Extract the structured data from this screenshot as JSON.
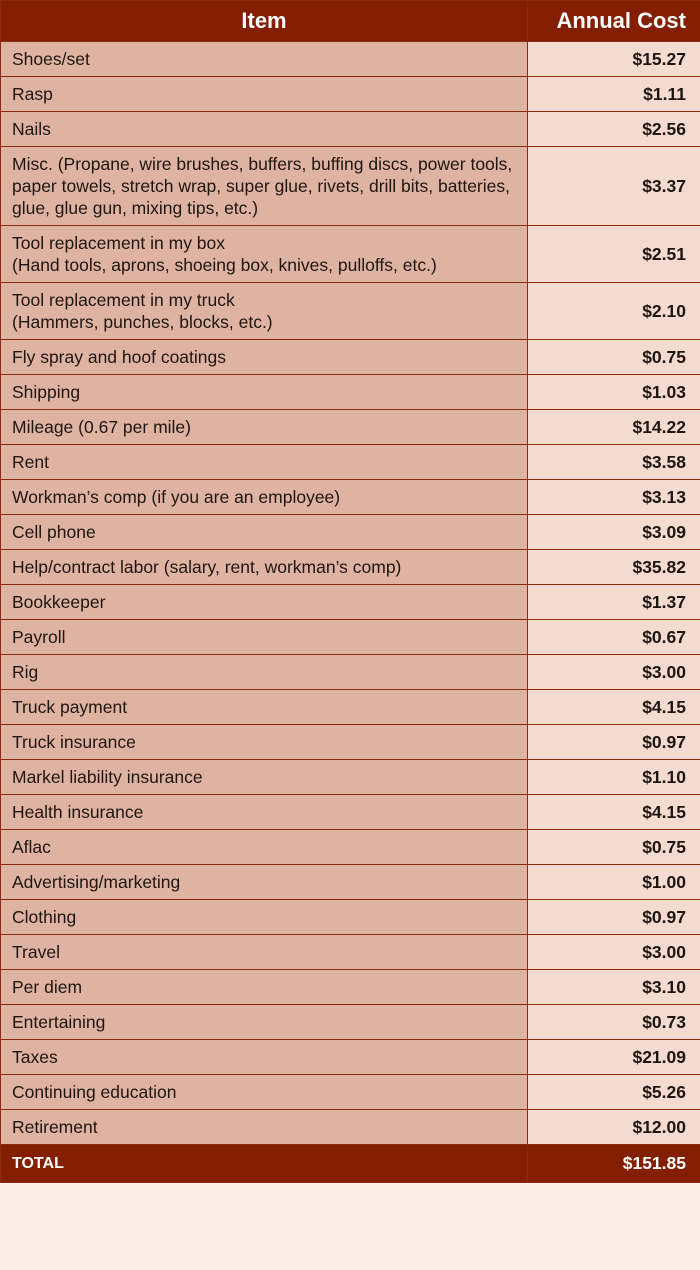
{
  "header": {
    "item": "Item",
    "annual_cost": "Annual Cost"
  },
  "rows": [
    {
      "item": "Shoes/set",
      "note": "",
      "cost": "$15.27",
      "nl": false
    },
    {
      "item": "Rasp",
      "note": "",
      "cost": "$1.11",
      "nl": false
    },
    {
      "item": "Nails",
      "note": "",
      "cost": "$2.56",
      "nl": false
    },
    {
      "item": "Misc.",
      "note": "(Propane, wire brushes, buffers, buffing discs, power tools, paper towels, stretch wrap, super glue, rivets, drill bits, batteries, glue, glue gun, mixing tips, etc.)",
      "cost": "$3.37",
      "nl": false
    },
    {
      "item": "Tool replacement in my box",
      "note": "(Hand tools, aprons, shoeing box, knives, pulloffs, etc.)",
      "cost": "$2.51",
      "nl": true
    },
    {
      "item": "Tool replacement in my truck",
      "note": "(Hammers, punches, blocks, etc.)",
      "cost": "$2.10",
      "nl": true
    },
    {
      "item": "Fly spray and hoof coatings",
      "note": "",
      "cost": "$0.75",
      "nl": false
    },
    {
      "item": "Shipping",
      "note": "",
      "cost": "$1.03",
      "nl": false
    },
    {
      "item": "Mileage",
      "note": "(0.67 per mile)",
      "cost": "$14.22",
      "nl": false
    },
    {
      "item": "Rent",
      "note": "",
      "cost": "$3.58",
      "nl": false
    },
    {
      "item": "Workman’s comp",
      "note": "(if you are an employee)",
      "cost": "$3.13",
      "nl": false
    },
    {
      "item": "Cell phone",
      "note": "",
      "cost": "$3.09",
      "nl": false
    },
    {
      "item": "Help/contract labor",
      "note": "(salary, rent, workman’s comp)",
      "cost": "$35.82",
      "nl": false
    },
    {
      "item": "Bookkeeper",
      "note": "",
      "cost": "$1.37",
      "nl": false
    },
    {
      "item": "Payroll",
      "note": "",
      "cost": "$0.67",
      "nl": false
    },
    {
      "item": "Rig",
      "note": "",
      "cost": "$3.00",
      "nl": false
    },
    {
      "item": "Truck payment",
      "note": "",
      "cost": "$4.15",
      "nl": false
    },
    {
      "item": "Truck insurance",
      "note": "",
      "cost": "$0.97",
      "nl": false
    },
    {
      "item": "Markel liability insurance",
      "note": "",
      "cost": "$1.10",
      "nl": false
    },
    {
      "item": "Health insurance",
      "note": "",
      "cost": "$4.15",
      "nl": false
    },
    {
      "item": "Aflac",
      "note": "",
      "cost": "$0.75",
      "nl": false
    },
    {
      "item": "Advertising/marketing",
      "note": "",
      "cost": "$1.00",
      "nl": false
    },
    {
      "item": "Clothing",
      "note": "",
      "cost": "$0.97",
      "nl": false
    },
    {
      "item": "Travel",
      "note": "",
      "cost": "$3.00",
      "nl": false
    },
    {
      "item": "Per diem",
      "note": "",
      "cost": "$3.10",
      "nl": false
    },
    {
      "item": "Entertaining",
      "note": "",
      "cost": "$0.73",
      "nl": false
    },
    {
      "item": "Taxes",
      "note": "",
      "cost": "$21.09",
      "nl": false
    },
    {
      "item": "Continuing education",
      "note": "",
      "cost": "$5.26",
      "nl": false
    },
    {
      "item": "Retirement",
      "note": "",
      "cost": "$12.00",
      "nl": false
    }
  ],
  "total": {
    "label": "TOTAL",
    "value": "$151.85"
  },
  "colors": {
    "header": "#831f00",
    "item_cell": "#dfb3a2",
    "cost_cell": "#f4dbd0"
  }
}
